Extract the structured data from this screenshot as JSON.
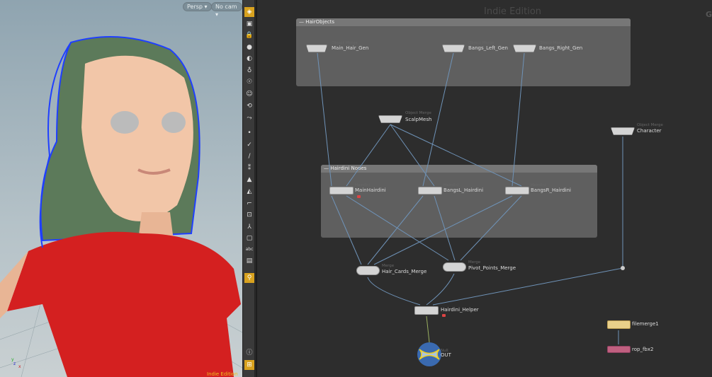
{
  "viewport": {
    "camera_menu": "Persp",
    "cam_menu": "No cam",
    "watermark": "Indie Edition",
    "axes": {
      "x": "x",
      "y": "y",
      "z": "z"
    }
  },
  "toolbar": {
    "abc_label": "abc"
  },
  "network": {
    "watermark": "Indie Edition",
    "corner_letter": "G",
    "boxes": [
      {
        "title": "HairObjects"
      },
      {
        "title": "Hairdini Nodes"
      }
    ],
    "nodes": {
      "main_hair_gen": {
        "type": "Object Merge",
        "name": "Main_Hair_Gen"
      },
      "bangs_left_gen": {
        "type": "Object Merge",
        "name": "Bangs_Left_Gen"
      },
      "bangs_right_gen": {
        "type": "Object Merge",
        "name": "Bangs_Right_Gen"
      },
      "scalpmesh": {
        "type": "Object Merge",
        "name": "ScalpMesh"
      },
      "character": {
        "type": "Object Merge",
        "name": "Character"
      },
      "mainhairdini": {
        "type": "Hairdini",
        "name": "MainHairdini"
      },
      "bangsl": {
        "type": "Hairdini",
        "name": "BangsL_Hairdini"
      },
      "bangsr": {
        "type": "Hairdini",
        "name": "BangsR_Hairdini"
      },
      "hair_cards_merge": {
        "type": "Merge",
        "name": "Hair_Cards_Merge"
      },
      "pivot_points_merge": {
        "type": "Merge",
        "name": "Pivot_Points_Merge"
      },
      "hairdini_helper": {
        "name": "Hairdini_Helper"
      },
      "out": {
        "type": "Null",
        "name": "OUT"
      },
      "filemerge1": {
        "name": "filemerge1"
      },
      "rop_fbx2": {
        "name": "rop_fbx2"
      }
    }
  },
  "colors": {
    "accent": "#d8a21f",
    "wire": "#6f93b8",
    "shirt": "#d42020",
    "hair_wire": "#1f3fff"
  }
}
